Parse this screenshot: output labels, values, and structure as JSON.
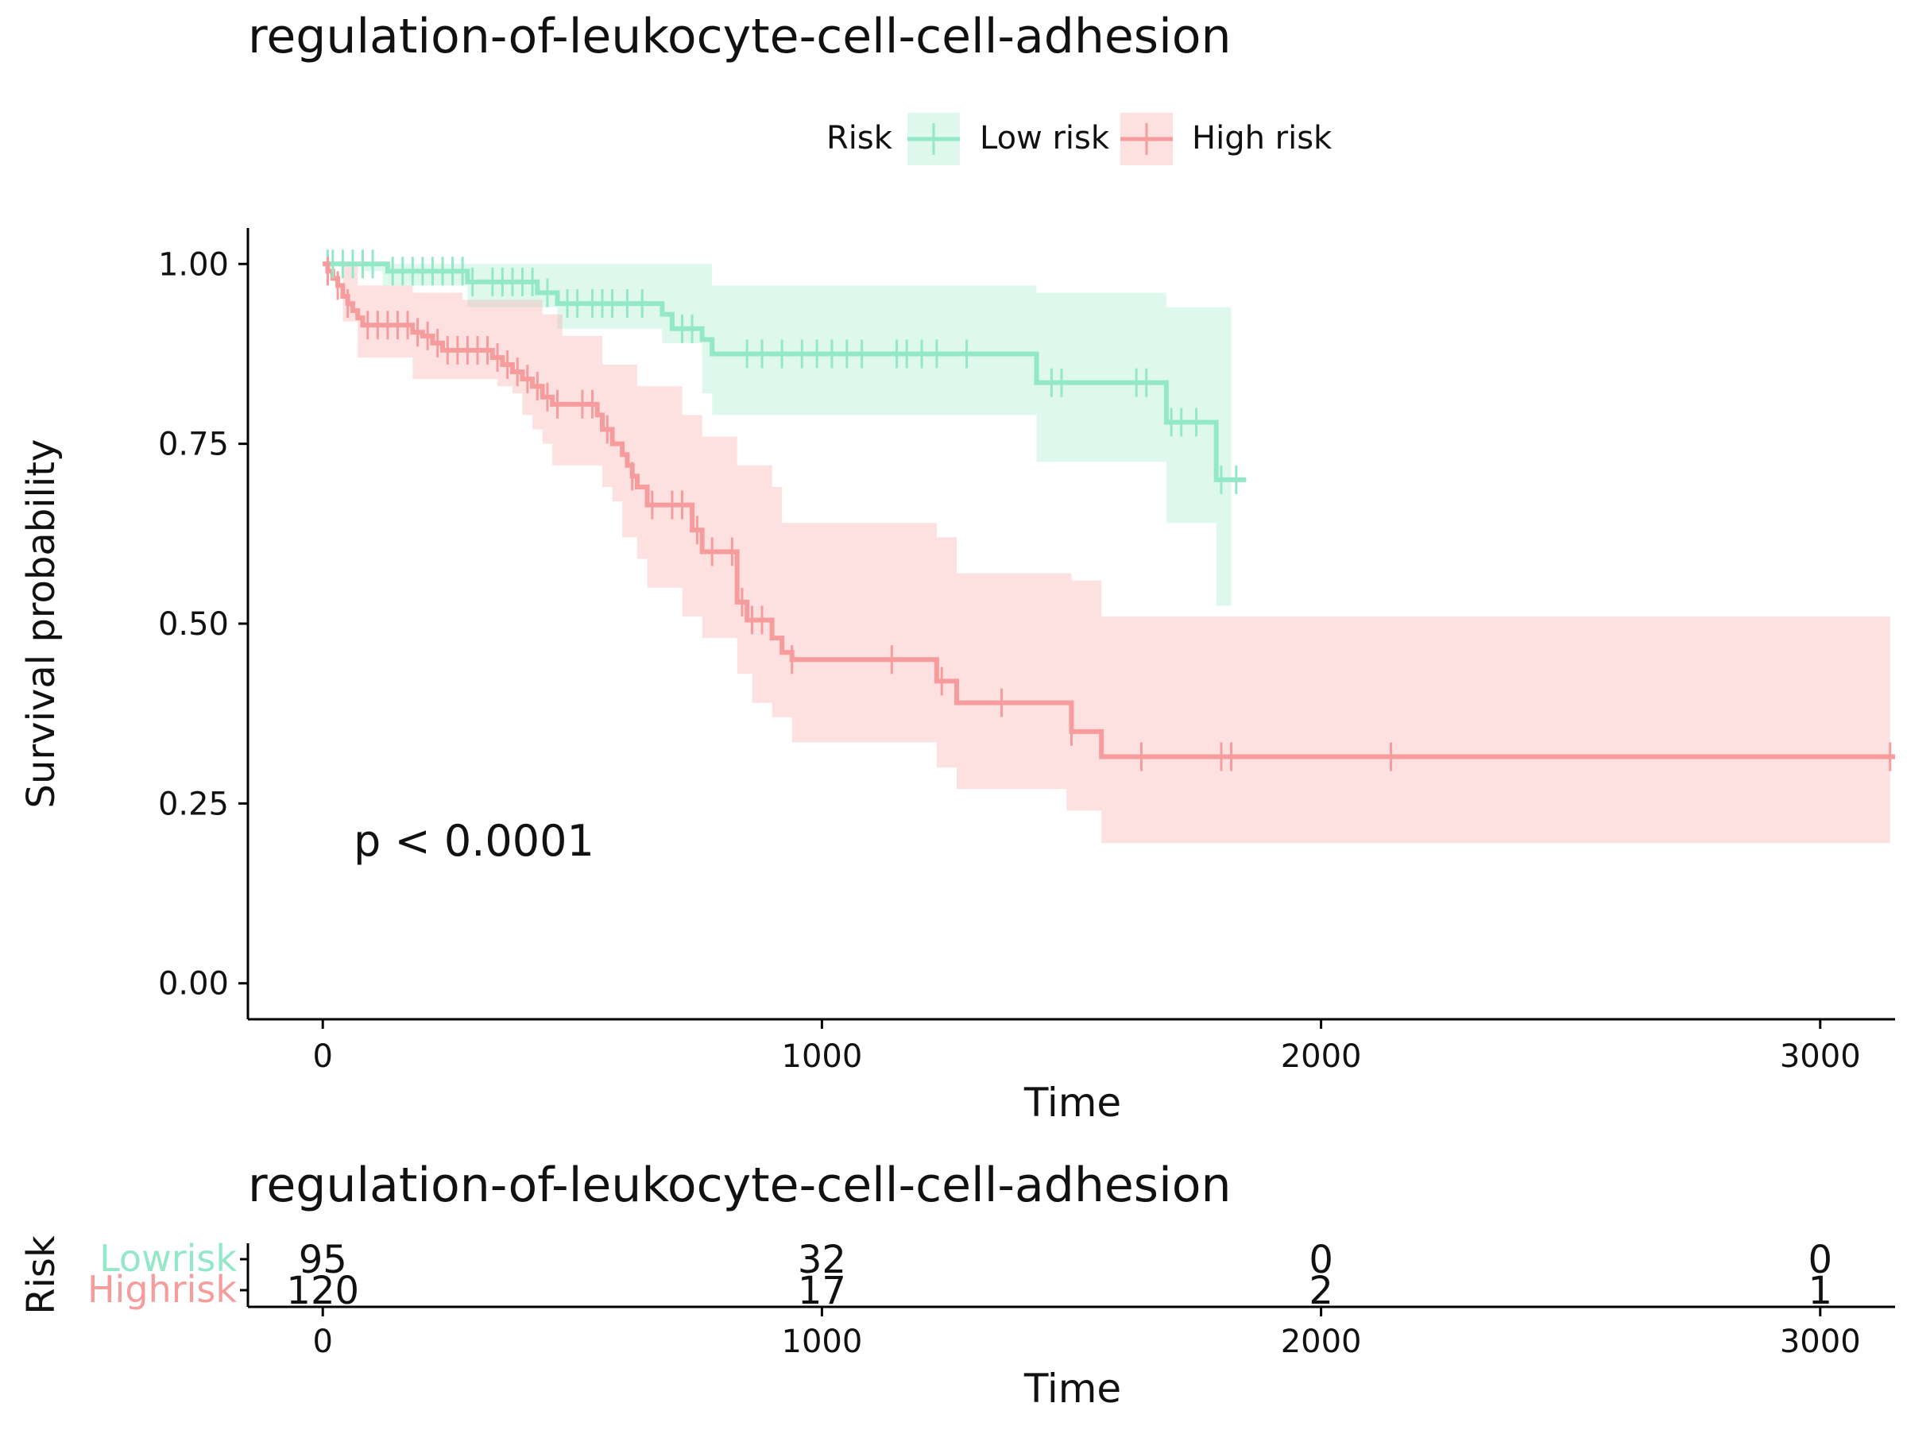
{
  "chart_data": [
    {
      "type": "line",
      "subtype": "kaplan-meier survival curve with confidence bands and censor marks",
      "title": "regulation-of-leukocyte-cell-cell-adhesion",
      "xlabel": "Time",
      "ylabel": "Survival probability",
      "xlim": [
        -150,
        3150
      ],
      "ylim": [
        -0.05,
        1.05
      ],
      "xticks": [
        0,
        1000,
        2000,
        3000
      ],
      "xtick_labels": [
        "0",
        "1000",
        "2000",
        "3000"
      ],
      "yticks": [
        0,
        0.25,
        0.5,
        0.75,
        1
      ],
      "ytick_labels": [
        "0.00",
        "0.25",
        "0.50",
        "0.75",
        "1.00"
      ],
      "grid": false,
      "legend": {
        "title": "Risk",
        "position": "top"
      },
      "annotation": "p < 0.0001",
      "series": [
        {
          "name": "Low risk",
          "color": "#93E8C8",
          "steps": [
            [
              0,
              1.0
            ],
            [
              130,
              0.99
            ],
            [
              290,
              0.975
            ],
            [
              430,
              0.96
            ],
            [
              470,
              0.945
            ],
            [
              680,
              0.93
            ],
            [
              700,
              0.91
            ],
            [
              760,
              0.895
            ],
            [
              780,
              0.875
            ],
            [
              1430,
              0.835
            ],
            [
              1690,
              0.78
            ],
            [
              1790,
              0.7
            ],
            [
              1850,
              0.7
            ]
          ],
          "ci_upper": [
            [
              0,
              1.0
            ],
            [
              330,
              1.0
            ],
            [
              780,
              0.97
            ],
            [
              1430,
              0.96
            ],
            [
              1690,
              0.94
            ],
            [
              1820,
              0.93
            ]
          ],
          "ci_lower": [
            [
              0,
              1.0
            ],
            [
              80,
              0.99
            ],
            [
              120,
              0.97
            ],
            [
              290,
              0.94
            ],
            [
              470,
              0.91
            ],
            [
              680,
              0.89
            ],
            [
              760,
              0.82
            ],
            [
              780,
              0.79
            ],
            [
              1430,
              0.725
            ],
            [
              1690,
              0.64
            ],
            [
              1790,
              0.525
            ],
            [
              1820,
              0.525
            ]
          ],
          "censor_times": [
            10,
            20,
            40,
            60,
            80,
            100,
            140,
            160,
            180,
            200,
            220,
            240,
            260,
            280,
            300,
            340,
            360,
            380,
            400,
            420,
            450,
            490,
            510,
            540,
            560,
            580,
            610,
            640,
            720,
            740,
            850,
            880,
            920,
            960,
            990,
            1020,
            1050,
            1080,
            1150,
            1170,
            1200,
            1230,
            1290,
            1460,
            1480,
            1630,
            1650,
            1700,
            1720,
            1750,
            1800,
            1830
          ]
        },
        {
          "name": "High risk",
          "color": "#F79C9C",
          "steps": [
            [
              0,
              1.0
            ],
            [
              10,
              0.99
            ],
            [
              20,
              0.98
            ],
            [
              30,
              0.97
            ],
            [
              40,
              0.955
            ],
            [
              50,
              0.945
            ],
            [
              60,
              0.935
            ],
            [
              70,
              0.925
            ],
            [
              80,
              0.915
            ],
            [
              180,
              0.905
            ],
            [
              200,
              0.9
            ],
            [
              220,
              0.89
            ],
            [
              240,
              0.88
            ],
            [
              340,
              0.87
            ],
            [
              360,
              0.86
            ],
            [
              380,
              0.85
            ],
            [
              400,
              0.84
            ],
            [
              420,
              0.83
            ],
            [
              440,
              0.815
            ],
            [
              460,
              0.805
            ],
            [
              550,
              0.79
            ],
            [
              560,
              0.77
            ],
            [
              580,
              0.75
            ],
            [
              600,
              0.735
            ],
            [
              610,
              0.72
            ],
            [
              620,
              0.705
            ],
            [
              630,
              0.69
            ],
            [
              650,
              0.665
            ],
            [
              740,
              0.63
            ],
            [
              760,
              0.6
            ],
            [
              830,
              0.53
            ],
            [
              850,
              0.505
            ],
            [
              900,
              0.48
            ],
            [
              920,
              0.46
            ],
            [
              940,
              0.45
            ],
            [
              1230,
              0.42
            ],
            [
              1270,
              0.39
            ],
            [
              1500,
              0.35
            ],
            [
              1560,
              0.315
            ],
            [
              3150,
              0.315
            ]
          ],
          "ci_upper": [
            [
              0,
              1.0
            ],
            [
              70,
              0.97
            ],
            [
              180,
              0.96
            ],
            [
              280,
              0.95
            ],
            [
              440,
              0.93
            ],
            [
              480,
              0.9
            ],
            [
              560,
              0.86
            ],
            [
              630,
              0.83
            ],
            [
              720,
              0.79
            ],
            [
              760,
              0.76
            ],
            [
              830,
              0.72
            ],
            [
              900,
              0.69
            ],
            [
              920,
              0.64
            ],
            [
              1230,
              0.62
            ],
            [
              1270,
              0.57
            ],
            [
              1500,
              0.56
            ],
            [
              1560,
              0.51
            ],
            [
              3140,
              0.51
            ]
          ],
          "ci_lower": [
            [
              0,
              1.0
            ],
            [
              40,
              0.92
            ],
            [
              70,
              0.87
            ],
            [
              180,
              0.84
            ],
            [
              350,
              0.83
            ],
            [
              380,
              0.82
            ],
            [
              400,
              0.79
            ],
            [
              420,
              0.77
            ],
            [
              440,
              0.75
            ],
            [
              460,
              0.72
            ],
            [
              560,
              0.69
            ],
            [
              580,
              0.67
            ],
            [
              600,
              0.62
            ],
            [
              630,
              0.59
            ],
            [
              650,
              0.55
            ],
            [
              720,
              0.51
            ],
            [
              760,
              0.48
            ],
            [
              830,
              0.43
            ],
            [
              860,
              0.39
            ],
            [
              900,
              0.37
            ],
            [
              940,
              0.335
            ],
            [
              1230,
              0.3
            ],
            [
              1270,
              0.27
            ],
            [
              1490,
              0.24
            ],
            [
              1560,
              0.195
            ],
            [
              3140,
              0.195
            ]
          ],
          "censor_times": [
            10,
            30,
            50,
            90,
            110,
            130,
            150,
            170,
            190,
            210,
            230,
            250,
            270,
            290,
            310,
            330,
            350,
            370,
            390,
            410,
            430,
            450,
            470,
            520,
            540,
            570,
            620,
            660,
            700,
            720,
            750,
            780,
            820,
            840,
            860,
            880,
            940,
            1140,
            1240,
            1360,
            1500,
            1640,
            1800,
            1820,
            2140,
            3140
          ]
        }
      ]
    },
    {
      "type": "table",
      "title": "regulation-of-leukocyte-cell-cell-adhesion",
      "xlabel": "Time",
      "ylabel": "Risk",
      "xlim": [
        -150,
        3150
      ],
      "xticks": [
        0,
        1000,
        2000,
        3000
      ],
      "xtick_labels": [
        "0",
        "1000",
        "2000",
        "3000"
      ],
      "rows": [
        {
          "label": "Lowrisk",
          "color": "#93E8C8",
          "values": [
            "95",
            "32",
            "0",
            "0"
          ]
        },
        {
          "label": "Highrisk",
          "color": "#F79C9C",
          "values": [
            "120",
            "17",
            "2",
            "1"
          ]
        }
      ]
    }
  ]
}
